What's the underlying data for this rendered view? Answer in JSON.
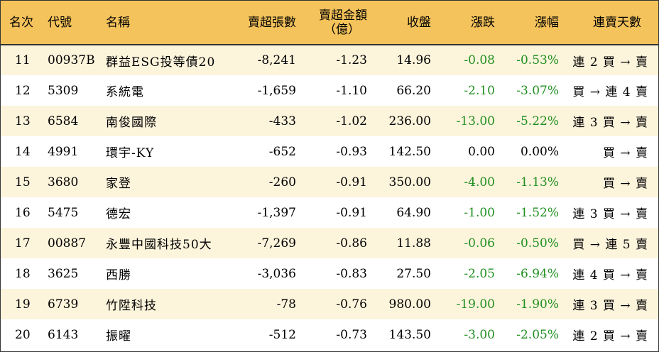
{
  "colors": {
    "header_bg": "#f5c35b",
    "row_alt_bg": "#fdf4dc",
    "negative_change": "#1f8f1f"
  },
  "table": {
    "headers": {
      "rank": "名次",
      "code": "代號",
      "name": "名稱",
      "net_sell_lots": "賣超張數",
      "net_sell_amount_line1": "賣超金額",
      "net_sell_amount_line2": "（億）",
      "close": "收盤",
      "change": "漲跌",
      "pct": "漲幅",
      "streak": "連賣天數"
    },
    "rows": [
      {
        "rank": "11",
        "code": "00937B",
        "name": "群益ESG投等債20",
        "lots": "-8,241",
        "amount": "-1.23",
        "close": "14.96",
        "change": "-0.08",
        "pct": "-0.53%",
        "streak": "連 2 買 → 賣"
      },
      {
        "rank": "12",
        "code": "5309",
        "name": "系統電",
        "lots": "-1,659",
        "amount": "-1.10",
        "close": "66.20",
        "change": "-2.10",
        "pct": "-3.07%",
        "streak": "買 → 連 4 賣"
      },
      {
        "rank": "13",
        "code": "6584",
        "name": "南俊國際",
        "lots": "-433",
        "amount": "-1.02",
        "close": "236.00",
        "change": "-13.00",
        "pct": "-5.22%",
        "streak": "連 3 買 → 賣"
      },
      {
        "rank": "14",
        "code": "4991",
        "name": "環宇-KY",
        "lots": "-652",
        "amount": "-0.93",
        "close": "142.50",
        "change": "0.00",
        "pct": "0.00%",
        "streak": "買 → 賣"
      },
      {
        "rank": "15",
        "code": "3680",
        "name": "家登",
        "lots": "-260",
        "amount": "-0.91",
        "close": "350.00",
        "change": "-4.00",
        "pct": "-1.13%",
        "streak": "買 → 賣"
      },
      {
        "rank": "16",
        "code": "5475",
        "name": "德宏",
        "lots": "-1,397",
        "amount": "-0.91",
        "close": "64.90",
        "change": "-1.00",
        "pct": "-1.52%",
        "streak": "連 3 買 → 賣"
      },
      {
        "rank": "17",
        "code": "00887",
        "name": "永豐中國科技50大",
        "lots": "-7,269",
        "amount": "-0.86",
        "close": "11.88",
        "change": "-0.06",
        "pct": "-0.50%",
        "streak": "買 → 連 5 賣"
      },
      {
        "rank": "18",
        "code": "3625",
        "name": "西勝",
        "lots": "-3,036",
        "amount": "-0.83",
        "close": "27.50",
        "change": "-2.05",
        "pct": "-6.94%",
        "streak": "連 4 買 → 賣"
      },
      {
        "rank": "19",
        "code": "6739",
        "name": "竹陞科技",
        "lots": "-78",
        "amount": "-0.76",
        "close": "980.00",
        "change": "-19.00",
        "pct": "-1.90%",
        "streak": "連 3 買 → 賣"
      },
      {
        "rank": "20",
        "code": "6143",
        "name": "振曜",
        "lots": "-512",
        "amount": "-0.73",
        "close": "143.50",
        "change": "-3.00",
        "pct": "-2.05%",
        "streak": "連 2 買 → 賣"
      }
    ]
  }
}
